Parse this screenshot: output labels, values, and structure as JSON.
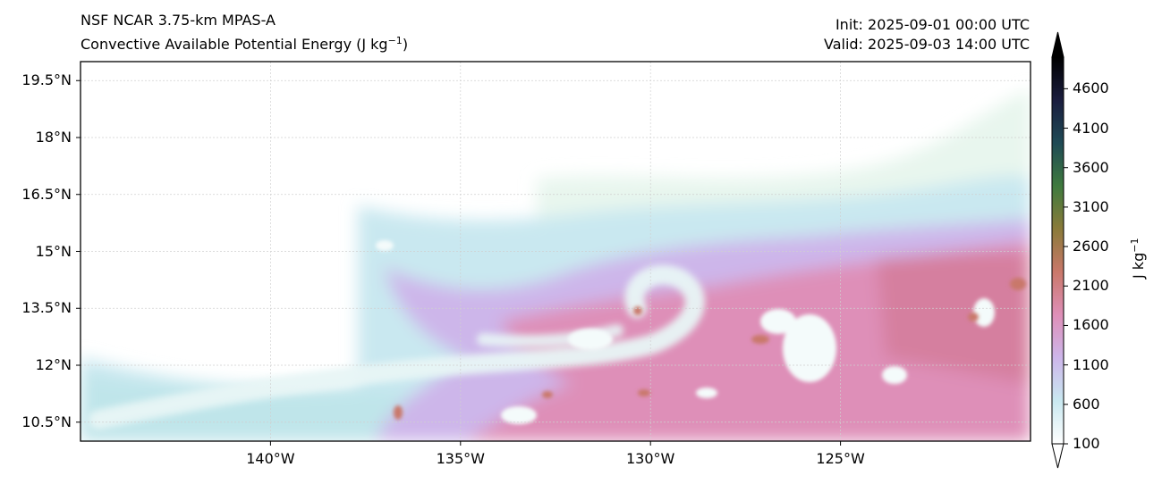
{
  "header": {
    "title_line1": "NSF NCAR 3.75-km MPAS-A",
    "title_line2_prefix": "Convective Available Potential Energy (J kg",
    "title_line2_sup": "−1",
    "title_line2_suffix": ")",
    "init_text": "Init: 2025-09-01 00:00 UTC",
    "valid_text": "Valid: 2025-09-03 14:00 UTC"
  },
  "map": {
    "lon_range": [
      -145,
      -120
    ],
    "lat_range": [
      10,
      20
    ],
    "yticks": [
      "19.5°N",
      "18°N",
      "16.5°N",
      "15°N",
      "13.5°N",
      "12°N",
      "10.5°N"
    ],
    "ytick_values": [
      19.5,
      18,
      16.5,
      15,
      13.5,
      12,
      10.5
    ],
    "xticks": [
      "140°W",
      "135°W",
      "130°W",
      "125°W"
    ],
    "xtick_values": [
      -140,
      -135,
      -130,
      -125
    ],
    "grid": true
  },
  "colorbar": {
    "label_prefix": "J kg",
    "label_sup": "−1",
    "ticks": [
      "4600",
      "4100",
      "3600",
      "3100",
      "2600",
      "2100",
      "1600",
      "1100",
      "600",
      "100"
    ],
    "tick_values": [
      4600,
      4100,
      3600,
      3100,
      2600,
      2100,
      1600,
      1100,
      600,
      100
    ],
    "range": [
      100,
      5000
    ],
    "extend": "both",
    "colors": [
      "#ffffff",
      "#c9e8f0",
      "#cdb6ea",
      "#de8fb8",
      "#c9786a",
      "#8a7a3a",
      "#3f7a3e",
      "#1f4a55",
      "#1a1d3e",
      "#000000"
    ]
  }
}
